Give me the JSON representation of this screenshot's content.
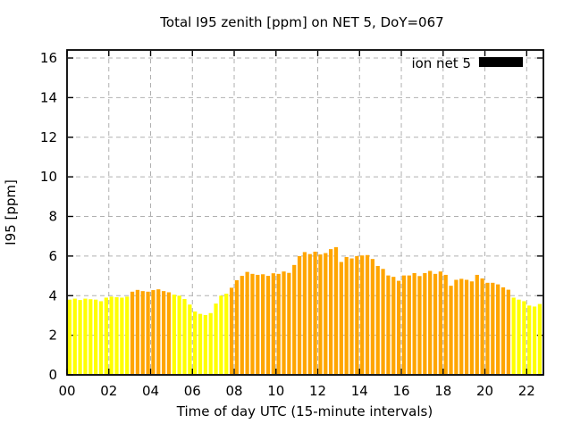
{
  "title": "Total I95 zenith [ppm] on NET 5, DoY=067",
  "chart_data": {
    "type": "bar",
    "title": "Total I95 zenith [ppm] on NET 5, DoY=067",
    "xlabel": "Time of day UTC (15-minute intervals)",
    "ylabel": "I95 [ppm]",
    "legend": [
      {
        "label": "ion net 5",
        "swatch_color": "#000000"
      }
    ],
    "legend_position": "top-right-inside",
    "grid": true,
    "background_color": "#ffffff",
    "x_start": "00:00",
    "x_step_minutes": 15,
    "x_end": "22:30",
    "xlim_hours": [
      0,
      22.8
    ],
    "ylim": [
      0,
      16.4
    ],
    "xtick_hours": [
      0,
      2,
      4,
      6,
      8,
      10,
      12,
      14,
      16,
      18,
      20,
      22
    ],
    "xtick_labels": [
      "00",
      "02",
      "04",
      "06",
      "08",
      "10",
      "12",
      "14",
      "16",
      "18",
      "20",
      "22"
    ],
    "ytick_values": [
      0,
      2,
      4,
      6,
      8,
      10,
      12,
      14,
      16
    ],
    "ytick_labels": [
      "0",
      "2",
      "4",
      "6",
      "8",
      "10",
      "12",
      "14",
      "16"
    ],
    "palette": {
      "yellow": "#ffff00",
      "orange": "#ffa500"
    },
    "values": [
      3.8,
      3.85,
      3.78,
      3.85,
      3.82,
      3.8,
      3.72,
      3.9,
      3.95,
      3.92,
      3.9,
      3.95,
      4.2,
      4.29,
      4.23,
      4.2,
      4.28,
      4.32,
      4.23,
      4.17,
      4.05,
      4.0,
      3.83,
      3.55,
      3.2,
      3.08,
      3.02,
      3.12,
      3.6,
      4.0,
      4.1,
      4.4,
      4.78,
      5.0,
      5.2,
      5.1,
      5.05,
      5.08,
      5.0,
      5.13,
      5.1,
      5.22,
      5.15,
      5.55,
      6.0,
      6.2,
      6.1,
      6.22,
      6.08,
      6.15,
      6.35,
      6.45,
      5.7,
      5.95,
      5.88,
      6.0,
      6.03,
      6.05,
      5.85,
      5.5,
      5.35,
      5.02,
      4.95,
      4.75,
      5.02,
      5.02,
      5.14,
      4.99,
      5.14,
      5.25,
      5.1,
      5.22,
      5.05,
      4.5,
      4.8,
      4.85,
      4.8,
      4.72,
      5.05,
      4.87,
      4.65,
      4.65,
      4.57,
      4.42,
      4.3,
      3.9,
      3.8,
      3.72,
      3.5,
      3.45,
      3.58
    ],
    "color_segments": [
      {
        "start_index": 0,
        "count": 12,
        "color": "yellow",
        "time_range": "00:00-02:45"
      },
      {
        "start_index": 12,
        "count": 8,
        "color": "orange",
        "time_range": "03:00-04:45"
      },
      {
        "start_index": 20,
        "count": 11,
        "color": "yellow",
        "time_range": "05:00-07:30"
      },
      {
        "start_index": 31,
        "count": 54,
        "color": "orange",
        "time_range": "07:45-21:00"
      },
      {
        "start_index": 85,
        "count": 6,
        "color": "yellow",
        "time_range": "21:15-22:30"
      }
    ]
  }
}
